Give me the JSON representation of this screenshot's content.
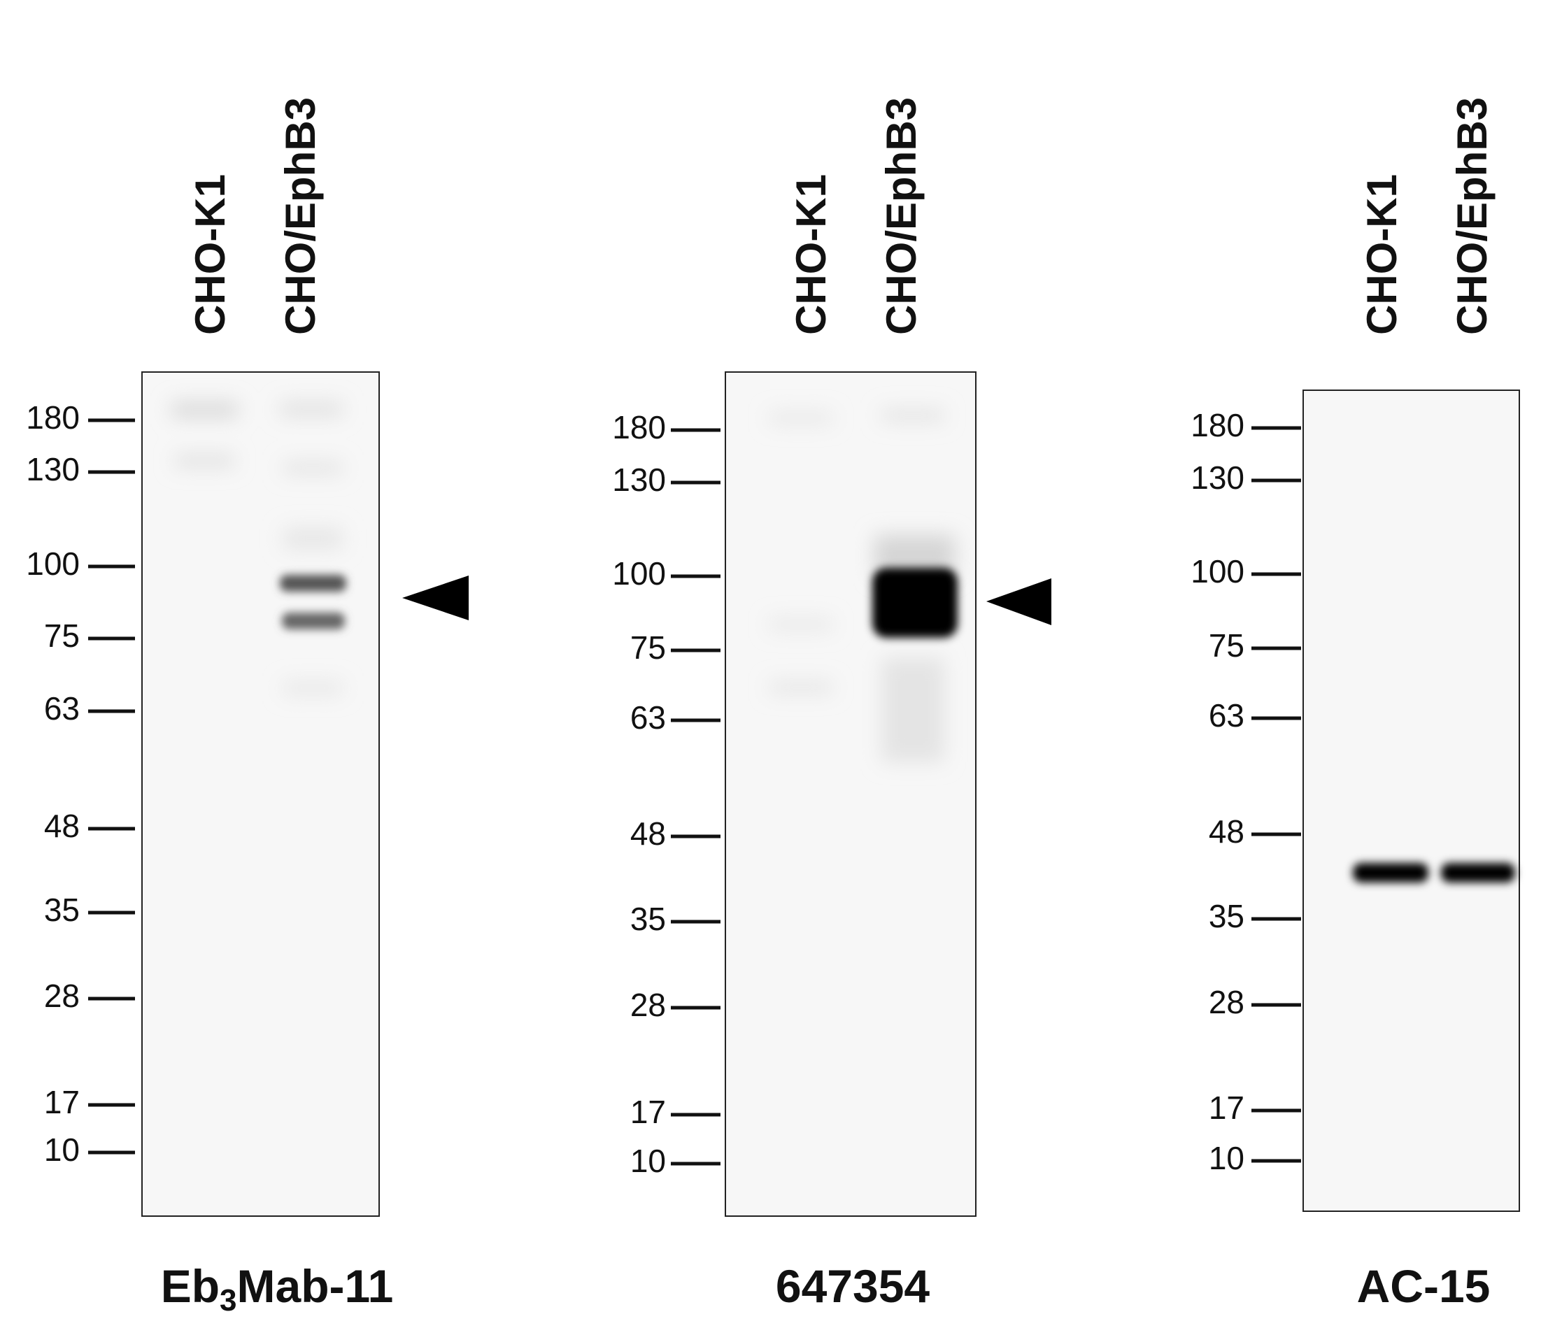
{
  "panels": [
    {
      "lanes": [
        "CHO-K1",
        "CHO/EphB3"
      ],
      "markers": [
        "180",
        "130",
        "100",
        "75",
        "63",
        "48",
        "35",
        "28",
        "17",
        "10"
      ],
      "caption": {
        "main": "Eb",
        "sub": "3",
        "rest": "Mab-11"
      }
    },
    {
      "lanes": [
        "CHO-K1",
        "CHO/EphB3"
      ],
      "markers": [
        "180",
        "130",
        "100",
        "75",
        "63",
        "48",
        "35",
        "28",
        "17",
        "10"
      ],
      "caption": {
        "main": "647354"
      }
    },
    {
      "lanes": [
        "CHO-K1",
        "CHO/EphB3"
      ],
      "markers": [
        "180",
        "130",
        "100",
        "75",
        "63",
        "48",
        "35",
        "28",
        "17",
        "10"
      ],
      "caption": {
        "main": "AC-15"
      }
    }
  ]
}
